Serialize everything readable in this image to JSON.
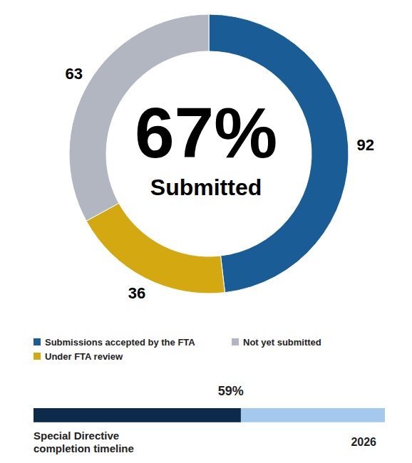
{
  "chart_data": [
    {
      "type": "donut",
      "categories": [
        "Submissions accepted by the FTA",
        "Under FTA review",
        "Not yet submitted"
      ],
      "values": [
        92,
        36,
        63
      ],
      "colors": [
        "#1a5c96",
        "#d4a811",
        "#b1b6c0"
      ],
      "data_labels": true,
      "legend": "bottom",
      "center": {
        "value": 67,
        "label": "67%",
        "text": "Submitted"
      }
    },
    {
      "type": "progress",
      "orientation": "horizontal",
      "values": [
        59
      ],
      "value_labels": [
        "59%"
      ],
      "xlim": [
        0,
        100
      ],
      "colors": [
        "#0c2a4c",
        "#a4c8ee"
      ],
      "data_labels": true,
      "tick_labels": false,
      "start_label": "Special Directive completion timeline",
      "end_label": "2026"
    }
  ]
}
